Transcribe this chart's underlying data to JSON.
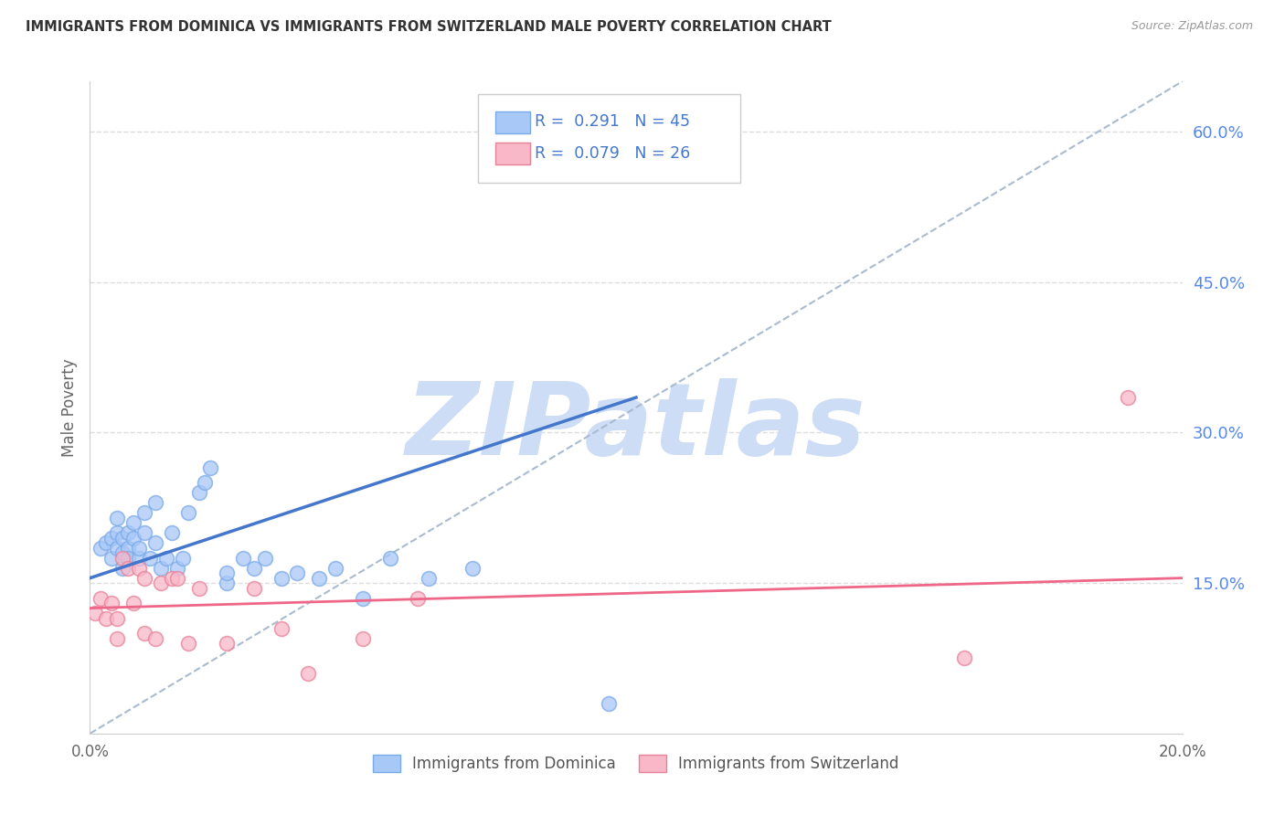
{
  "title": "IMMIGRANTS FROM DOMINICA VS IMMIGRANTS FROM SWITZERLAND MALE POVERTY CORRELATION CHART",
  "source": "Source: ZipAtlas.com",
  "ylabel": "Male Poverty",
  "dominica_color": "#a8c8f8",
  "dominica_edge": "#7aaae8",
  "switzerland_color": "#f8b8c8",
  "switzerland_edge": "#e88098",
  "regression_blue": "#4477cc",
  "regression_pink": "#ee6688",
  "dashed_line_color": "#aabbd0",
  "watermark_color": "#ccddf5",
  "watermark_text": "ZIPatlas",
  "dominica_x": [
    0.002,
    0.003,
    0.004,
    0.004,
    0.005,
    0.005,
    0.005,
    0.006,
    0.006,
    0.006,
    0.007,
    0.007,
    0.007,
    0.008,
    0.008,
    0.009,
    0.009,
    0.01,
    0.01,
    0.011,
    0.012,
    0.012,
    0.013,
    0.014,
    0.015,
    0.016,
    0.017,
    0.018,
    0.02,
    0.021,
    0.022,
    0.025,
    0.025,
    0.028,
    0.03,
    0.032,
    0.035,
    0.038,
    0.042,
    0.045,
    0.05,
    0.055,
    0.062,
    0.07,
    0.095
  ],
  "dominica_y": [
    0.185,
    0.19,
    0.195,
    0.175,
    0.185,
    0.2,
    0.215,
    0.18,
    0.195,
    0.165,
    0.2,
    0.185,
    0.175,
    0.195,
    0.21,
    0.175,
    0.185,
    0.22,
    0.2,
    0.175,
    0.19,
    0.23,
    0.165,
    0.175,
    0.2,
    0.165,
    0.175,
    0.22,
    0.24,
    0.25,
    0.265,
    0.15,
    0.16,
    0.175,
    0.165,
    0.175,
    0.155,
    0.16,
    0.155,
    0.165,
    0.135,
    0.175,
    0.155,
    0.165,
    0.03
  ],
  "switzerland_x": [
    0.001,
    0.002,
    0.003,
    0.004,
    0.005,
    0.005,
    0.006,
    0.007,
    0.008,
    0.009,
    0.01,
    0.01,
    0.012,
    0.013,
    0.015,
    0.016,
    0.018,
    0.02,
    0.025,
    0.03,
    0.035,
    0.04,
    0.05,
    0.06,
    0.16,
    0.19
  ],
  "switzerland_y": [
    0.12,
    0.135,
    0.115,
    0.13,
    0.115,
    0.095,
    0.175,
    0.165,
    0.13,
    0.165,
    0.1,
    0.155,
    0.095,
    0.15,
    0.155,
    0.155,
    0.09,
    0.145,
    0.09,
    0.145,
    0.105,
    0.06,
    0.095,
    0.135,
    0.075,
    0.335
  ],
  "xlim": [
    0.0,
    0.2
  ],
  "ylim": [
    0.0,
    0.65
  ],
  "yticks_right": [
    0.15,
    0.3,
    0.45,
    0.6
  ],
  "grid_color": "#dddddd",
  "blue_line_x": [
    0.0,
    0.1
  ],
  "blue_line_y": [
    0.155,
    0.335
  ],
  "pink_line_x": [
    0.0,
    0.2
  ],
  "pink_line_y": [
    0.125,
    0.155
  ]
}
